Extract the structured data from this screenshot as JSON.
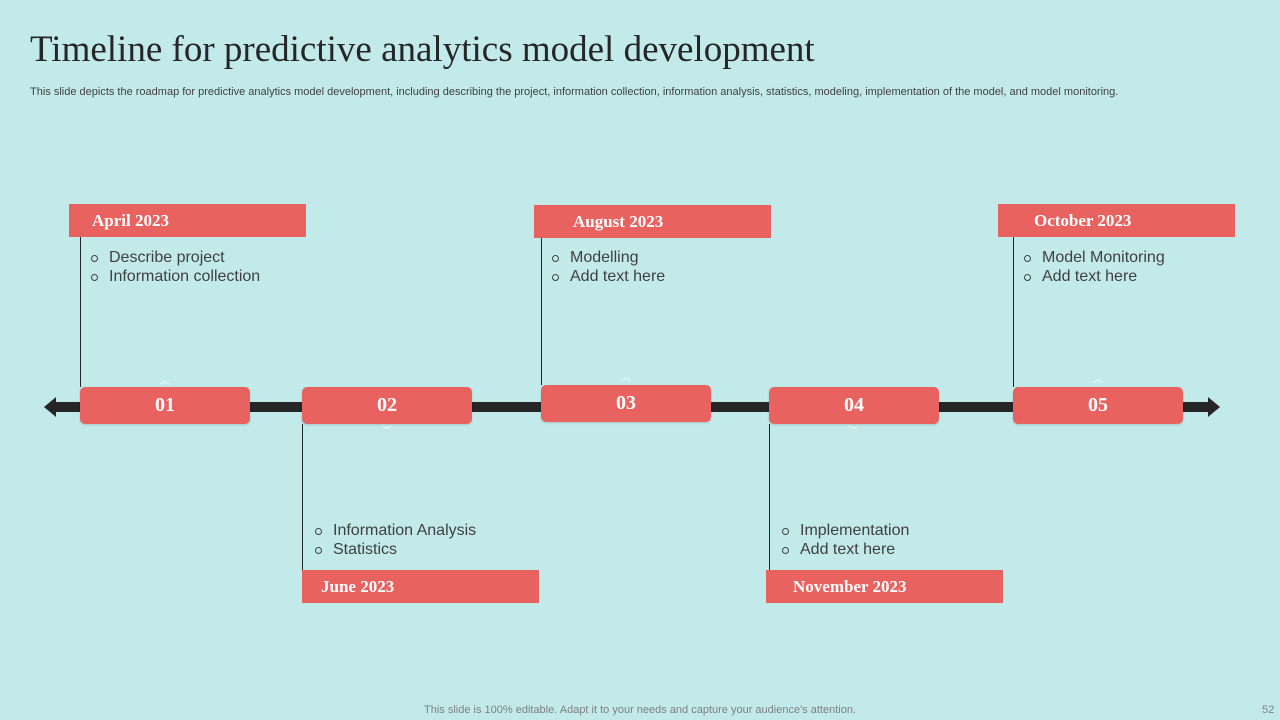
{
  "slide": {
    "title": "Timeline for predictive analytics model development",
    "subtitle": "This slide depicts the roadmap for predictive analytics model development, including describing the project, information collection, information analysis, statistics, modeling, implementation of the model, and model monitoring.",
    "footer": "This slide is 100% editable. Adapt it to your needs and capture your audience's attention.",
    "page_number": "52"
  },
  "colors": {
    "background": "#c3eaea",
    "accent": "#e86260",
    "axis": "#262626"
  },
  "milestones": [
    {
      "number": "01",
      "date": "April 2023",
      "items": [
        "Describe project",
        "Information collection"
      ]
    },
    {
      "number": "02",
      "date": "June 2023",
      "items": [
        "Information Analysis",
        "Statistics"
      ]
    },
    {
      "number": "03",
      "date": "August 2023",
      "items": [
        "Modelling",
        "Add text here"
      ]
    },
    {
      "number": "04",
      "date": "November 2023",
      "items": [
        "Implementation",
        "Add text here"
      ]
    },
    {
      "number": "05",
      "date": "October 2023",
      "items": [
        "Model Monitoring",
        "Add text here"
      ]
    }
  ]
}
